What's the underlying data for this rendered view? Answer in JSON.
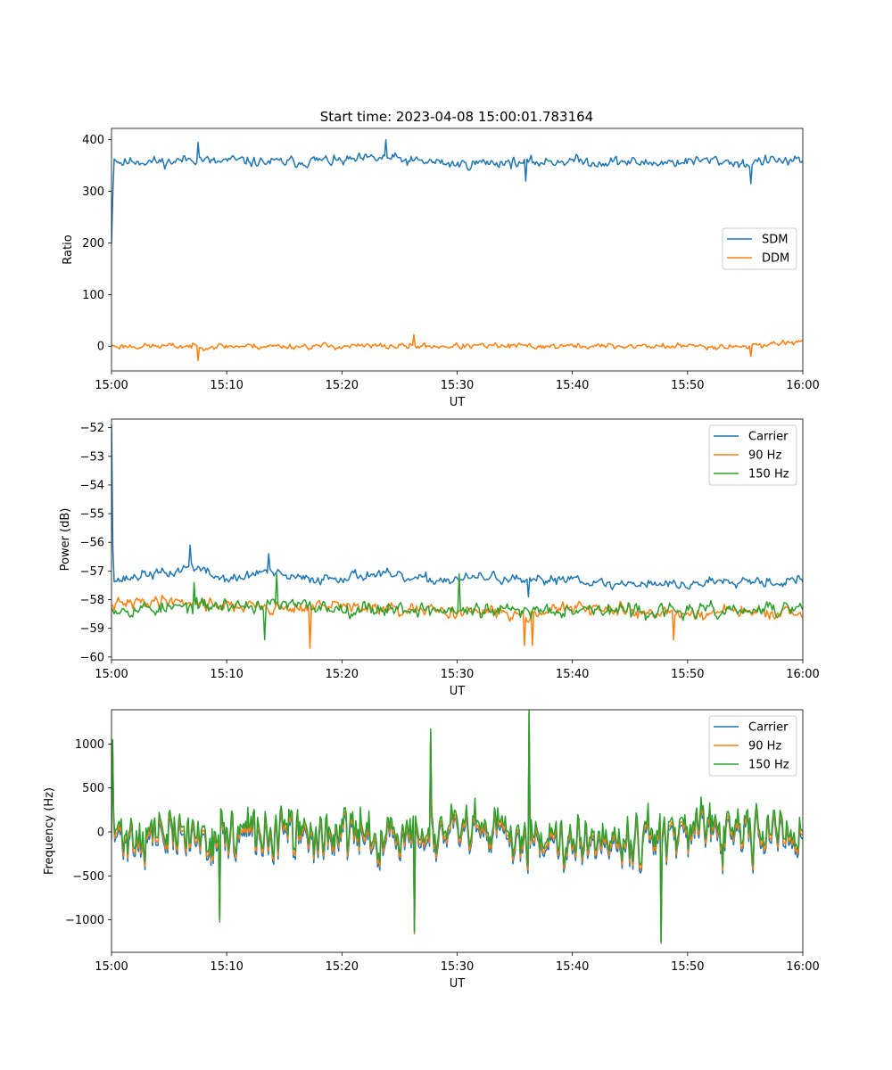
{
  "title": "Start time: 2023-04-08 15:00:01.783164",
  "colors": {
    "blue": "#1f77b4",
    "orange": "#ff7f0e",
    "green": "#2ca02c"
  },
  "chart_data": [
    {
      "type": "line",
      "title": "Start time: 2023-04-08 15:00:01.783164",
      "xlabel": "UT",
      "ylabel": "Ratio",
      "x_range": [
        "15:00",
        "16:00"
      ],
      "x_ticks": [
        "15:00",
        "15:10",
        "15:20",
        "15:30",
        "15:40",
        "15:50",
        "16:00"
      ],
      "ylim": [
        -48,
        422
      ],
      "y_ticks": [
        0,
        100,
        200,
        300,
        400
      ],
      "legend": "center-right",
      "series": [
        {
          "name": "SDM",
          "color": "#1f77b4",
          "samples": 520,
          "seed": 11,
          "offset": 0,
          "x_minutes": [
            0,
            0.2,
            0.5,
            1,
            2,
            3,
            5,
            6,
            7.5,
            9,
            10,
            12,
            14,
            16,
            18,
            20,
            22,
            24,
            26,
            28,
            30,
            32,
            34,
            36,
            38,
            40,
            42,
            44,
            46,
            48,
            50,
            52,
            54,
            55,
            56,
            58,
            60
          ],
          "y": [
            200,
            370,
            360,
            355,
            360,
            358,
            357,
            360,
            365,
            355,
            360,
            358,
            356,
            357,
            360,
            358,
            362,
            365,
            358,
            357,
            352,
            355,
            357,
            355,
            358,
            360,
            356,
            358,
            355,
            356,
            358,
            360,
            357,
            352,
            358,
            360,
            355
          ],
          "noise": 14,
          "spikes": [
            [
              7.5,
              395
            ],
            [
              23.8,
              400
            ],
            [
              36,
              320
            ],
            [
              55.5,
              315
            ]
          ]
        },
        {
          "name": "DDM",
          "color": "#ff7f0e",
          "samples": 520,
          "seed": 23,
          "offset": 0,
          "x_minutes": [
            0,
            5,
            10,
            15,
            20,
            25,
            30,
            35,
            40,
            45,
            50,
            55,
            60
          ],
          "y": [
            0,
            0,
            0,
            0,
            0,
            0,
            0,
            0,
            0,
            0,
            0,
            0,
            10
          ],
          "noise": 8,
          "spikes": [
            [
              7.5,
              -28
            ],
            [
              26.2,
              22
            ],
            [
              55.5,
              -20
            ]
          ]
        }
      ]
    },
    {
      "type": "line",
      "title": "",
      "xlabel": "UT",
      "ylabel": "Power (dB)",
      "x_range": [
        "15:00",
        "16:00"
      ],
      "x_ticks": [
        "15:00",
        "15:10",
        "15:20",
        "15:30",
        "15:40",
        "15:50",
        "16:00"
      ],
      "ylim": [
        -60.1,
        -51.7
      ],
      "y_ticks": [
        -60,
        -59,
        -58,
        -57,
        -56,
        -55,
        -54,
        -53,
        -52
      ],
      "legend": "top-right",
      "series": [
        {
          "name": "Carrier",
          "color": "#1f77b4",
          "samples": 520,
          "seed": 37,
          "offset": 0,
          "x_minutes": [
            0,
            0.15,
            0.5,
            1,
            3,
            5,
            7,
            9,
            11,
            13,
            15,
            17,
            20,
            23,
            26,
            30,
            33,
            36,
            40,
            43,
            46,
            50,
            53,
            56,
            58,
            60
          ],
          "y": [
            -51.9,
            -57.2,
            -57.3,
            -57.3,
            -57.1,
            -57.1,
            -56.8,
            -57.2,
            -57.3,
            -57.0,
            -57.2,
            -57.3,
            -57.2,
            -57.1,
            -57.3,
            -57.3,
            -57.2,
            -57.4,
            -57.2,
            -57.5,
            -57.4,
            -57.5,
            -57.3,
            -57.3,
            -57.4,
            -57.3
          ],
          "noise": 0.25,
          "spikes": [
            [
              6.8,
              -56.1
            ],
            [
              13.6,
              -56.4
            ],
            [
              36.2,
              -57.9
            ]
          ]
        },
        {
          "name": "90 Hz",
          "color": "#ff7f0e",
          "samples": 520,
          "seed": 41,
          "offset": 0,
          "x_minutes": [
            0,
            5,
            10,
            15,
            20,
            25,
            30,
            35,
            40,
            45,
            50,
            55,
            60
          ],
          "y": [
            -58.2,
            -58.0,
            -58.2,
            -58.3,
            -58.2,
            -58.4,
            -58.4,
            -58.5,
            -58.3,
            -58.4,
            -58.5,
            -58.4,
            -58.6
          ],
          "noise": 0.3,
          "spikes": [
            [
              17.2,
              -59.7
            ],
            [
              35.8,
              -59.6
            ],
            [
              36.5,
              -59.6
            ],
            [
              48.8,
              -59.4
            ]
          ]
        },
        {
          "name": "150 Hz",
          "color": "#2ca02c",
          "samples": 520,
          "seed": 53,
          "offset": 0,
          "x_minutes": [
            0,
            5,
            10,
            15,
            20,
            25,
            30,
            35,
            40,
            45,
            50,
            55,
            60
          ],
          "y": [
            -58.3,
            -58.3,
            -58.2,
            -58.2,
            -58.3,
            -58.3,
            -58.4,
            -58.4,
            -58.3,
            -58.4,
            -58.4,
            -58.4,
            -58.3
          ],
          "noise": 0.35,
          "spikes": [
            [
              7.2,
              -57.4
            ],
            [
              14.3,
              -57.1
            ],
            [
              30.2,
              -57.1
            ],
            [
              13.3,
              -59.4
            ]
          ]
        }
      ]
    },
    {
      "type": "line",
      "title": "",
      "xlabel": "UT",
      "ylabel": "Frequency (Hz)",
      "x_range": [
        "15:00",
        "16:00"
      ],
      "x_ticks": [
        "15:00",
        "15:10",
        "15:20",
        "15:30",
        "15:40",
        "15:50",
        "16:00"
      ],
      "ylim": [
        -1370,
        1390
      ],
      "y_ticks": [
        -1000,
        -500,
        0,
        500,
        1000
      ],
      "legend": "top-right",
      "series": [
        {
          "name": "Carrier",
          "color": "#1f77b4",
          "samples": 640,
          "seed": 71,
          "offset": -90,
          "x_minutes": [
            0,
            60
          ],
          "y": [
            0,
            0
          ],
          "noise": 380,
          "spikes": [
            [
              0.1,
              1050
            ],
            [
              27.7,
              1170
            ],
            [
              36.2,
              1380
            ],
            [
              47.7,
              -1240
            ],
            [
              26.3,
              -1130
            ],
            [
              9.4,
              -1000
            ]
          ]
        },
        {
          "name": "90 Hz",
          "color": "#ff7f0e",
          "samples": 640,
          "seed": 71,
          "offset": -50,
          "x_minutes": [
            0,
            60
          ],
          "y": [
            0,
            0
          ],
          "noise": 380,
          "spikes": [
            [
              0.1,
              1050
            ],
            [
              27.7,
              1170
            ],
            [
              36.2,
              1380
            ],
            [
              47.7,
              -1240
            ],
            [
              26.3,
              -1130
            ],
            [
              9.4,
              -1000
            ]
          ]
        },
        {
          "name": "150 Hz",
          "color": "#2ca02c",
          "samples": 640,
          "seed": 71,
          "offset": 0,
          "x_minutes": [
            0,
            60
          ],
          "y": [
            0,
            0
          ],
          "noise": 380,
          "spikes": [
            [
              0.1,
              1050
            ],
            [
              27.7,
              1170
            ],
            [
              36.2,
              1380
            ],
            [
              47.7,
              -1240
            ],
            [
              26.3,
              -1130
            ],
            [
              9.4,
              -1000
            ]
          ]
        }
      ]
    }
  ]
}
